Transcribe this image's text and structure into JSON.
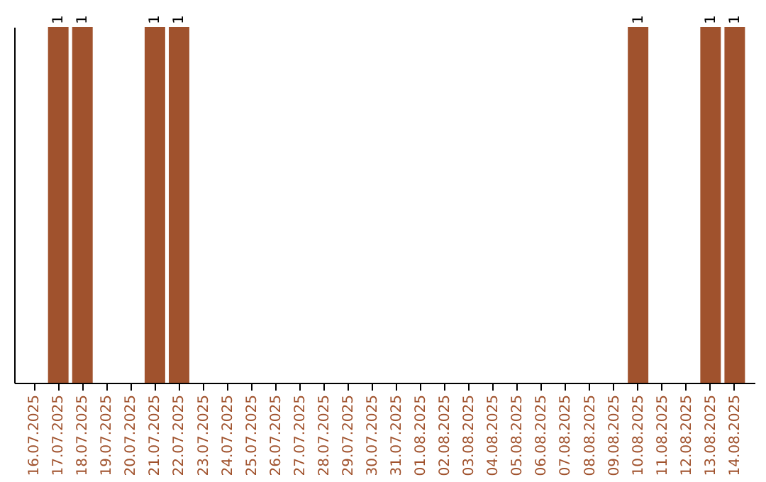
{
  "chart_data": {
    "type": "bar",
    "tick_labels": "x",
    "color": "#a0522d",
    "categories": [
      "16.07.2025",
      "17.07.2025",
      "18.07.2025",
      "19.07.2025",
      "20.07.2025",
      "21.07.2025",
      "22.07.2025",
      "23.07.2025",
      "24.07.2025",
      "25.07.2025",
      "26.07.2025",
      "27.07.2025",
      "28.07.2025",
      "29.07.2025",
      "30.07.2025",
      "31.07.2025",
      "01.08.2025",
      "02.08.2025",
      "03.08.2025",
      "04.08.2025",
      "05.08.2025",
      "06.08.2025",
      "07.08.2025",
      "08.08.2025",
      "09.08.2025",
      "10.08.2025",
      "11.08.2025",
      "12.08.2025",
      "13.08.2025",
      "14.08.2025"
    ],
    "values": [
      0,
      1,
      1,
      0,
      0,
      1,
      1,
      0,
      0,
      0,
      0,
      0,
      0,
      0,
      0,
      0,
      0,
      0,
      0,
      0,
      0,
      0,
      0,
      0,
      0,
      1,
      0,
      0,
      1,
      1
    ],
    "value_labels": [
      null,
      "1",
      "1",
      null,
      null,
      "1",
      "1",
      null,
      null,
      null,
      null,
      null,
      null,
      null,
      null,
      null,
      null,
      null,
      null,
      null,
      null,
      null,
      null,
      null,
      null,
      "1",
      null,
      null,
      "1",
      "1"
    ],
    "grid": false
  }
}
